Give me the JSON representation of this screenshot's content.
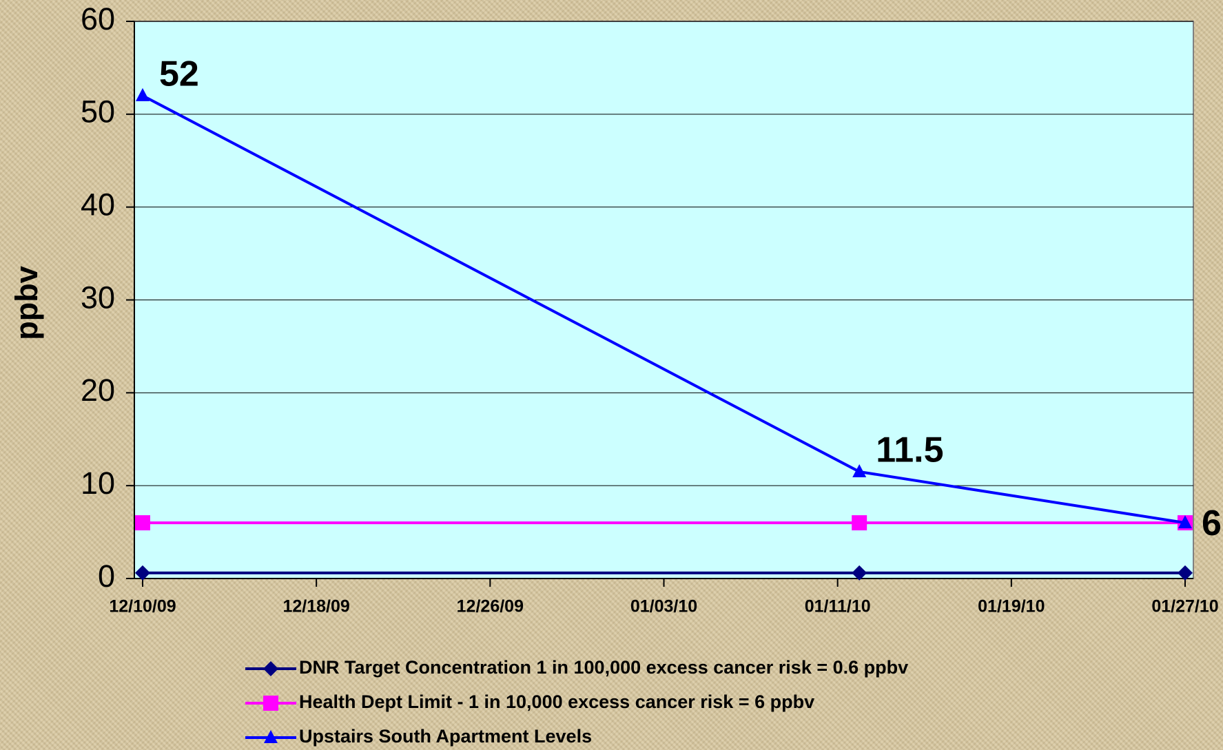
{
  "chart_data": {
    "type": "line",
    "ylabel": "ppbv",
    "x": [
      "2009-12-10",
      "2010-01-12",
      "2010-01-27"
    ],
    "xlim": [
      "2009-12-10",
      "2010-01-27"
    ],
    "xticks": [
      {
        "value": "2009-12-10",
        "label": "12/10/09"
      },
      {
        "value": "2009-12-18",
        "label": "12/18/09"
      },
      {
        "value": "2009-12-26",
        "label": "12/26/09"
      },
      {
        "value": "2010-01-03",
        "label": "01/03/10"
      },
      {
        "value": "2010-01-11",
        "label": "01/11/10"
      },
      {
        "value": "2010-01-19",
        "label": "01/19/10"
      },
      {
        "value": "2010-01-27",
        "label": "01/27/10"
      }
    ],
    "ylim": [
      0,
      60
    ],
    "yticks": [
      0,
      10,
      20,
      30,
      40,
      50,
      60
    ],
    "grid": true,
    "legend": "bottom",
    "series": [
      {
        "name": "DNR Target Concentration 1 in 100,000 excess cancer risk = 0.6 ppbv",
        "color": "#000080",
        "marker": "diamond",
        "values": [
          0.6,
          0.6,
          0.6
        ]
      },
      {
        "name": "Health Dept Limit - 1 in 10,000 excess cancer risk = 6 ppbv",
        "color": "#ff00ff",
        "marker": "square",
        "values": [
          6,
          6,
          6
        ]
      },
      {
        "name": "Upstairs South Apartment Levels",
        "color": "#0000ff",
        "marker": "triangle",
        "values": [
          52,
          11.5,
          6
        ],
        "data_labels": true
      }
    ]
  }
}
